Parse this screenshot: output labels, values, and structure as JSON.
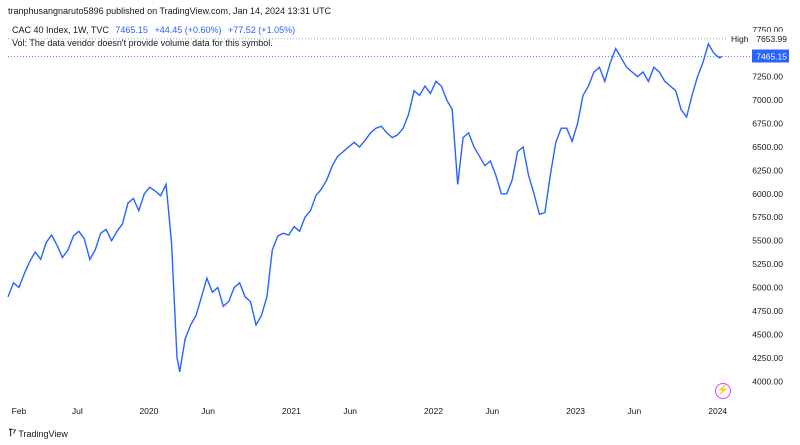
{
  "header": {
    "caption": "tranphusangnaruto5896 published on TradingView.com, Jan 14, 2024 13:31 UTC",
    "symbol": "CAC 40 Index, 1W, TVC",
    "last": "7465.15",
    "change": "+44.45 (+0.60%)",
    "change2": "+77.52 (+1.05%)",
    "volume_note": "Vol: The data vendor doesn't provide volume data for this symbol."
  },
  "footer": {
    "brand": "TradingView",
    "brand_icon": "tradingview-logo-icon",
    "badge_icon": "lightning-icon"
  },
  "colors": {
    "line": "#2962ff",
    "high_tag": "#ffffff",
    "last_tag": "#2962ff",
    "text": "#131722"
  },
  "chart_data": {
    "type": "line",
    "title": "CAC 40 Index, 1W, TVC",
    "xlabel": "",
    "ylabel": "",
    "x_ticks": [
      "Feb",
      "Jul",
      "2020",
      "Jun",
      "2021",
      "Jun",
      "2022",
      "Jun",
      "2023",
      "Jun",
      "2024"
    ],
    "y_ticks": [
      4000,
      4250,
      4500,
      4750,
      5000,
      5250,
      5500,
      5750,
      6000,
      6250,
      6500,
      6750,
      7000,
      7250,
      7500,
      7750
    ],
    "ylim": [
      3960,
      7780
    ],
    "grid": false,
    "price_labels": {
      "high_label": "High",
      "high_value": "7653.99",
      "last_value": "7465.15"
    },
    "x": [
      "2019-01-04",
      "2019-01-18",
      "2019-02-01",
      "2019-02-15",
      "2019-03-01",
      "2019-03-15",
      "2019-03-29",
      "2019-04-12",
      "2019-04-26",
      "2019-05-10",
      "2019-05-24",
      "2019-06-07",
      "2019-06-21",
      "2019-07-05",
      "2019-07-19",
      "2019-08-02",
      "2019-08-16",
      "2019-08-30",
      "2019-09-13",
      "2019-09-27",
      "2019-10-11",
      "2019-10-25",
      "2019-11-08",
      "2019-11-22",
      "2019-12-06",
      "2019-12-20",
      "2020-01-03",
      "2020-01-17",
      "2020-01-31",
      "2020-02-14",
      "2020-02-28",
      "2020-03-13",
      "2020-03-20",
      "2020-04-03",
      "2020-04-17",
      "2020-05-01",
      "2020-05-15",
      "2020-05-29",
      "2020-06-12",
      "2020-06-26",
      "2020-07-10",
      "2020-07-24",
      "2020-08-07",
      "2020-08-21",
      "2020-09-04",
      "2020-09-18",
      "2020-10-02",
      "2020-10-16",
      "2020-10-30",
      "2020-11-13",
      "2020-11-27",
      "2020-12-11",
      "2020-12-25",
      "2021-01-08",
      "2021-01-22",
      "2021-02-05",
      "2021-02-19",
      "2021-03-05",
      "2021-03-19",
      "2021-04-02",
      "2021-04-16",
      "2021-04-30",
      "2021-05-14",
      "2021-05-28",
      "2021-06-11",
      "2021-06-25",
      "2021-07-09",
      "2021-07-23",
      "2021-08-06",
      "2021-08-20",
      "2021-09-03",
      "2021-09-17",
      "2021-10-01",
      "2021-10-15",
      "2021-10-29",
      "2021-11-12",
      "2021-11-26",
      "2021-12-10",
      "2021-12-24",
      "2022-01-07",
      "2022-01-21",
      "2022-02-04",
      "2022-02-18",
      "2022-03-04",
      "2022-03-18",
      "2022-04-01",
      "2022-04-15",
      "2022-04-29",
      "2022-05-13",
      "2022-05-27",
      "2022-06-10",
      "2022-06-24",
      "2022-07-08",
      "2022-07-22",
      "2022-08-05",
      "2022-08-19",
      "2022-09-02",
      "2022-09-16",
      "2022-09-30",
      "2022-10-14",
      "2022-10-28",
      "2022-11-11",
      "2022-11-25",
      "2022-12-09",
      "2022-12-23",
      "2023-01-06",
      "2023-01-20",
      "2023-02-03",
      "2023-02-17",
      "2023-03-03",
      "2023-03-17",
      "2023-03-31",
      "2023-04-14",
      "2023-04-28",
      "2023-05-12",
      "2023-05-26",
      "2023-06-09",
      "2023-06-23",
      "2023-07-07",
      "2023-07-21",
      "2023-08-04",
      "2023-08-18",
      "2023-09-01",
      "2023-09-15",
      "2023-09-29",
      "2023-10-13",
      "2023-10-27",
      "2023-11-10",
      "2023-11-24",
      "2023-12-08",
      "2023-12-22",
      "2024-01-05",
      "2024-01-12"
    ],
    "series": [
      {
        "values": [
          4900,
          5050,
          5000,
          5150,
          5280,
          5380,
          5300,
          5480,
          5560,
          5450,
          5320,
          5400,
          5550,
          5600,
          5520,
          5300,
          5400,
          5580,
          5620,
          5500,
          5600,
          5680,
          5900,
          5950,
          5820,
          6000,
          6070,
          6030,
          5980,
          6100,
          5480,
          4250,
          4100,
          4450,
          4600,
          4700,
          4900,
          5100,
          4950,
          5000,
          4800,
          4850,
          5000,
          5050,
          4900,
          4850,
          4600,
          4700,
          4900,
          5400,
          5550,
          5580,
          5560,
          5650,
          5600,
          5750,
          5820,
          5980,
          6050,
          6150,
          6300,
          6400,
          6450,
          6500,
          6550,
          6500,
          6570,
          6650,
          6700,
          6720,
          6650,
          6600,
          6630,
          6700,
          6850,
          7100,
          7050,
          7150,
          7070,
          7200,
          7150,
          7000,
          6900,
          6100,
          6600,
          6650,
          6500,
          6400,
          6300,
          6350,
          6200,
          6000,
          6000,
          6150,
          6450,
          6500,
          6200,
          6000,
          5780,
          5800,
          6200,
          6550,
          6700,
          6700,
          6560,
          6750,
          7050,
          7150,
          7300,
          7350,
          7200,
          7400,
          7550,
          7450,
          7350,
          7300,
          7250,
          7300,
          7200,
          7350,
          7300,
          7200,
          7150,
          7100,
          6900,
          6820,
          7050,
          7250,
          7400,
          7600,
          7500,
          7450,
          7465.15
        ]
      }
    ]
  }
}
